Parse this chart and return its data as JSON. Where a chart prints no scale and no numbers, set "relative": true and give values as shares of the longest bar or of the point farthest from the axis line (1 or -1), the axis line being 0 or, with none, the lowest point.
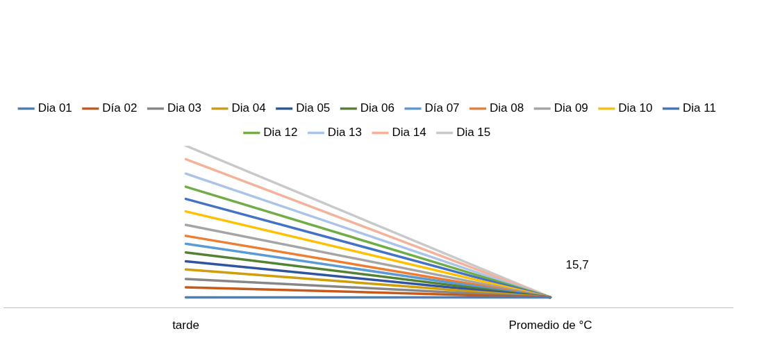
{
  "chart_data": {
    "type": "line",
    "relative": true,
    "categories": [
      "tarde",
      "Promedio de °C"
    ],
    "legend": "top",
    "grid": false,
    "marker": "none",
    "line_style": "solid",
    "series": [
      {
        "name": "Dia 01",
        "color": "#4a7fb8",
        "values": [
          0.065,
          0.065
        ]
      },
      {
        "name": "Día 02",
        "color": "#c55a1b",
        "values": [
          0.127,
          0.065
        ]
      },
      {
        "name": "Dia 03",
        "color": "#878787",
        "values": [
          0.178,
          0.065
        ]
      },
      {
        "name": "Dia 04",
        "color": "#d09e0a",
        "values": [
          0.237,
          0.065
        ]
      },
      {
        "name": "Dia 05",
        "color": "#2f55a0",
        "values": [
          0.287,
          0.065
        ]
      },
      {
        "name": "Dia 06",
        "color": "#548235",
        "values": [
          0.342,
          0.065
        ]
      },
      {
        "name": "Día 07",
        "color": "#5b9bd5",
        "values": [
          0.395,
          0.065
        ]
      },
      {
        "name": "Dia 08",
        "color": "#ed7d31",
        "values": [
          0.444,
          0.065
        ]
      },
      {
        "name": "Dia 09",
        "color": "#a5a5a5",
        "values": [
          0.512,
          0.065
        ]
      },
      {
        "name": "Dia 10",
        "color": "#ffc000",
        "values": [
          0.595,
          0.065
        ]
      },
      {
        "name": "Dia 11",
        "color": "#4472c4",
        "values": [
          0.672,
          0.065
        ]
      },
      {
        "name": "Dia 12",
        "color": "#70ad47",
        "values": [
          0.747,
          0.065
        ]
      },
      {
        "name": "Dia 13",
        "color": "#a9c4e8",
        "values": [
          0.828,
          0.065
        ]
      },
      {
        "name": "Dia 14",
        "color": "#f4b29a",
        "values": [
          0.917,
          0.065
        ]
      },
      {
        "name": "Dia 15",
        "color": "#c9c9c9",
        "values": [
          1,
          0.065
        ]
      }
    ],
    "annotations": [
      {
        "text": "15,7",
        "x": "Promedio de °C",
        "y": 0.065
      }
    ]
  }
}
